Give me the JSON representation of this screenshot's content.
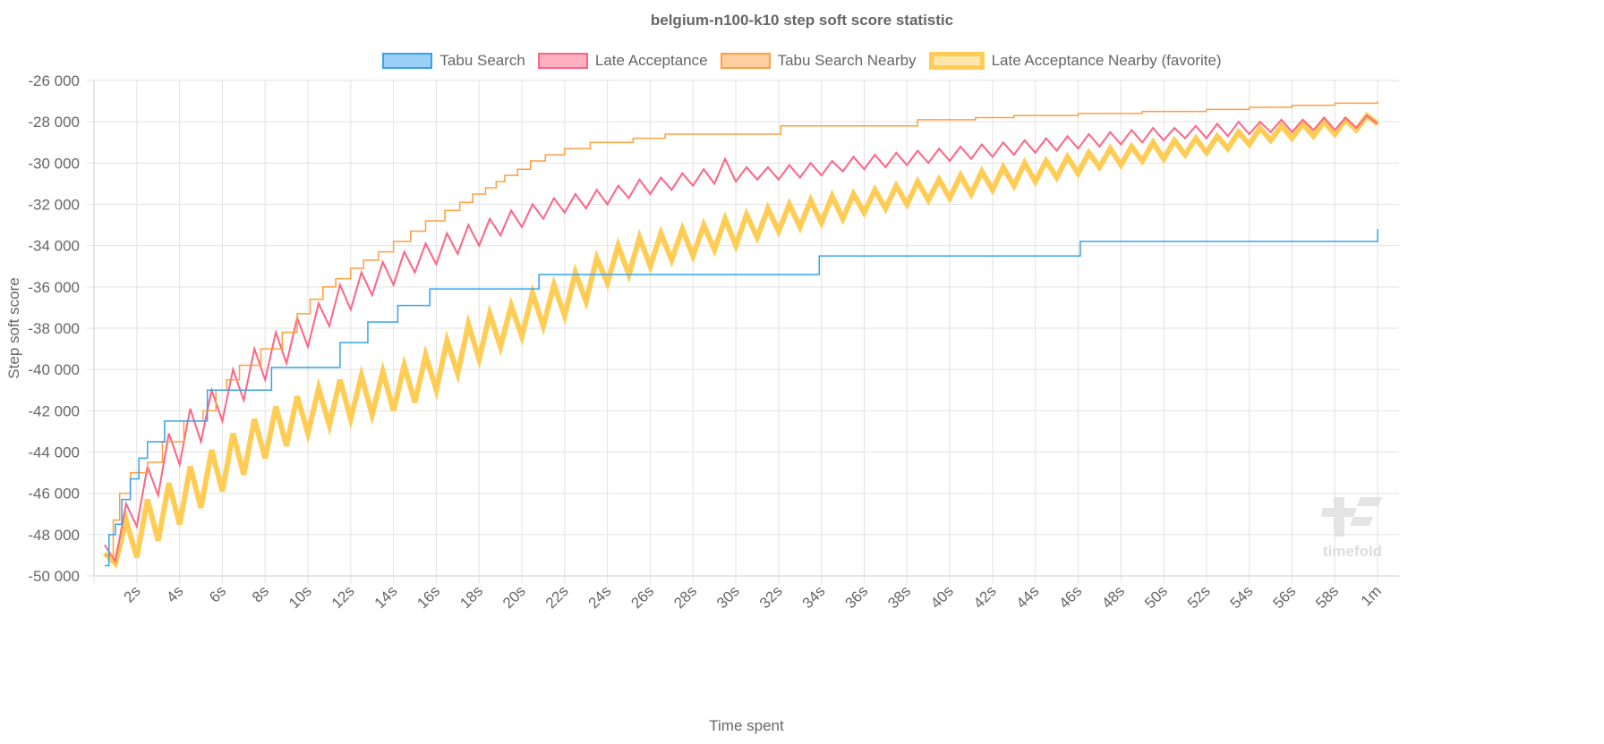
{
  "chart_data": {
    "type": "line",
    "title": "belgium-n100-k10 step soft score statistic",
    "xlabel": "Time spent",
    "ylabel": "Step soft score",
    "xlim": [
      0,
      61
    ],
    "ylim": [
      -50000,
      -26000
    ],
    "grid": true,
    "legend_position": "top",
    "x_ticks": [
      2,
      4,
      6,
      8,
      10,
      12,
      14,
      16,
      18,
      20,
      22,
      24,
      26,
      28,
      30,
      32,
      34,
      36,
      38,
      40,
      42,
      44,
      46,
      48,
      50,
      52,
      54,
      56,
      58,
      60
    ],
    "x_tick_labels": [
      "2s",
      "4s",
      "6s",
      "8s",
      "10s",
      "12s",
      "14s",
      "16s",
      "18s",
      "20s",
      "22s",
      "24s",
      "26s",
      "28s",
      "30s",
      "32s",
      "34s",
      "36s",
      "38s",
      "40s",
      "42s",
      "44s",
      "46s",
      "48s",
      "50s",
      "52s",
      "54s",
      "56s",
      "58s",
      "1m"
    ],
    "y_ticks": [
      -26000,
      -28000,
      -30000,
      -32000,
      -34000,
      -36000,
      -38000,
      -40000,
      -42000,
      -44000,
      -46000,
      -48000,
      -50000
    ],
    "y_tick_labels": [
      "-26 000",
      "-28 000",
      "-30 000",
      "-32 000",
      "-34 000",
      "-36 000",
      "-38 000",
      "-40 000",
      "-42 000",
      "-44 000",
      "-46 000",
      "-48 000",
      "-50 000"
    ],
    "sample_times": [
      0.5,
      1,
      1.5,
      2,
      2.5,
      3,
      3.5,
      4,
      4.5,
      5,
      5.5,
      6,
      6.5,
      7,
      7.5,
      8,
      8.5,
      9,
      9.5,
      10,
      10.5,
      11,
      11.5,
      12,
      12.5,
      13,
      13.5,
      14,
      14.5,
      15,
      15.5,
      16,
      16.5,
      17,
      17.5,
      18,
      18.5,
      19,
      19.5,
      20,
      20.5,
      21,
      21.5,
      22,
      22.5,
      23,
      23.5,
      24,
      24.5,
      25,
      25.5,
      26,
      26.5,
      27,
      27.5,
      28,
      28.5,
      29,
      29.5,
      30,
      30.5,
      31,
      31.5,
      32,
      32.5,
      33,
      33.5,
      34,
      34.5,
      35,
      35.5,
      36,
      36.5,
      37,
      37.5,
      38,
      38.5,
      39,
      39.5,
      40,
      40.5,
      41,
      41.5,
      42,
      42.5,
      43,
      43.5,
      44,
      44.5,
      45,
      45.5,
      46,
      46.5,
      47,
      47.5,
      48,
      48.5,
      49,
      49.5,
      50,
      50.5,
      51,
      51.5,
      52,
      52.5,
      53,
      53.5,
      54,
      54.5,
      55,
      55.5,
      56,
      56.5,
      57,
      57.5,
      58,
      58.5,
      59,
      59.5,
      60
    ],
    "series": [
      {
        "name": "Tabu Search",
        "color": "#36a2eb",
        "fill": "#9ad0f5",
        "step": true,
        "points": [
          [
            0.5,
            -49500
          ],
          [
            0.7,
            -48000
          ],
          [
            1.0,
            -47500
          ],
          [
            1.3,
            -46300
          ],
          [
            1.7,
            -45300
          ],
          [
            2.1,
            -44300
          ],
          [
            2.5,
            -43500
          ],
          [
            3.3,
            -42500
          ],
          [
            5.3,
            -41000
          ],
          [
            8.3,
            -39900
          ],
          [
            11.5,
            -38700
          ],
          [
            12.8,
            -37700
          ],
          [
            14.2,
            -36900
          ],
          [
            15.7,
            -36100
          ],
          [
            20.8,
            -35400
          ],
          [
            33.9,
            -34500
          ],
          [
            46.1,
            -33800
          ],
          [
            60,
            -33800
          ],
          [
            60,
            -33200
          ]
        ]
      },
      {
        "name": "Late Acceptance",
        "color": "#ff6384",
        "fill": "#ffb1c1",
        "values": [
          -48500,
          -49300,
          -46500,
          -47600,
          -44700,
          -46100,
          -43100,
          -44600,
          -41900,
          -43500,
          -41000,
          -42500,
          -40000,
          -41500,
          -39000,
          -40500,
          -38200,
          -39700,
          -37500,
          -38900,
          -36800,
          -37900,
          -35900,
          -37100,
          -35300,
          -36400,
          -34800,
          -35900,
          -34300,
          -35300,
          -33900,
          -34900,
          -33400,
          -34400,
          -33000,
          -34000,
          -32700,
          -33500,
          -32300,
          -33100,
          -32000,
          -32700,
          -31700,
          -32400,
          -31500,
          -32200,
          -31300,
          -32000,
          -31100,
          -31700,
          -30800,
          -31500,
          -30700,
          -31300,
          -30500,
          -31100,
          -30300,
          -31000,
          -29800,
          -30900,
          -30200,
          -30800,
          -30200,
          -30800,
          -30100,
          -30700,
          -30000,
          -30600,
          -29900,
          -30400,
          -29700,
          -30300,
          -29600,
          -30200,
          -29500,
          -30100,
          -29400,
          -30000,
          -29300,
          -29900,
          -29200,
          -29800,
          -29100,
          -29700,
          -29000,
          -29600,
          -28900,
          -29500,
          -28800,
          -29400,
          -28700,
          -29300,
          -28600,
          -29200,
          -28500,
          -29100,
          -28400,
          -29000,
          -28300,
          -28900,
          -28300,
          -28800,
          -28200,
          -28800,
          -28100,
          -28700,
          -28000,
          -28600,
          -28000,
          -28500,
          -27900,
          -28500,
          -27900,
          -28400,
          -27800,
          -28400,
          -27800,
          -28300,
          -27700,
          -28100
        ]
      },
      {
        "name": "Tabu Search Nearby",
        "color": "#ff9f40",
        "fill": "#ffcf9f",
        "step": true,
        "points": [
          [
            0.5,
            -49000
          ],
          [
            0.9,
            -47300
          ],
          [
            1.2,
            -46000
          ],
          [
            1.7,
            -45000
          ],
          [
            2.5,
            -44500
          ],
          [
            3.2,
            -43500
          ],
          [
            4.2,
            -42500
          ],
          [
            5.1,
            -42000
          ],
          [
            5.7,
            -41000
          ],
          [
            6.2,
            -40500
          ],
          [
            6.8,
            -39800
          ],
          [
            7.8,
            -39000
          ],
          [
            8.8,
            -38200
          ],
          [
            9.5,
            -37300
          ],
          [
            10.1,
            -36600
          ],
          [
            10.7,
            -36000
          ],
          [
            11.3,
            -35600
          ],
          [
            12,
            -35100
          ],
          [
            12.6,
            -34700
          ],
          [
            13.3,
            -34300
          ],
          [
            14,
            -33800
          ],
          [
            14.8,
            -33300
          ],
          [
            15.5,
            -32800
          ],
          [
            16.4,
            -32300
          ],
          [
            17.1,
            -31900
          ],
          [
            17.7,
            -31500
          ],
          [
            18.3,
            -31200
          ],
          [
            18.8,
            -30900
          ],
          [
            19.2,
            -30600
          ],
          [
            19.8,
            -30300
          ],
          [
            20.4,
            -29900
          ],
          [
            21.1,
            -29600
          ],
          [
            22,
            -29300
          ],
          [
            23.2,
            -29000
          ],
          [
            25.2,
            -28800
          ],
          [
            26.7,
            -28600
          ],
          [
            32.1,
            -28200
          ],
          [
            38.5,
            -27900
          ],
          [
            41.2,
            -27800
          ],
          [
            43,
            -27700
          ],
          [
            46,
            -27600
          ],
          [
            49,
            -27500
          ],
          [
            52,
            -27400
          ],
          [
            54,
            -27300
          ],
          [
            56,
            -27200
          ],
          [
            58,
            -27100
          ],
          [
            60,
            -27000
          ]
        ]
      },
      {
        "name": "Late Acceptance Nearby (favorite)",
        "color": "#ffcd56",
        "fill": "#ffe6aa",
        "favorite": true,
        "values": [
          -48900,
          -49400,
          -47300,
          -49100,
          -46300,
          -48300,
          -45500,
          -47500,
          -44700,
          -46700,
          -43900,
          -45900,
          -43100,
          -45100,
          -42400,
          -44300,
          -41800,
          -43700,
          -41300,
          -43100,
          -40900,
          -42700,
          -40500,
          -42400,
          -40300,
          -42200,
          -40100,
          -42000,
          -39800,
          -41600,
          -39300,
          -41000,
          -38600,
          -40200,
          -37800,
          -39500,
          -37300,
          -38900,
          -36900,
          -38400,
          -36300,
          -37900,
          -35900,
          -37400,
          -35300,
          -36700,
          -34600,
          -35800,
          -34000,
          -35400,
          -33600,
          -35000,
          -33400,
          -34700,
          -33200,
          -34500,
          -33000,
          -34200,
          -32700,
          -34000,
          -32500,
          -33600,
          -32200,
          -33300,
          -32000,
          -33100,
          -31800,
          -32900,
          -31600,
          -32700,
          -31500,
          -32400,
          -31300,
          -32200,
          -31100,
          -32000,
          -30900,
          -31800,
          -30800,
          -31700,
          -30600,
          -31500,
          -30400,
          -31300,
          -30200,
          -31100,
          -30000,
          -30900,
          -29900,
          -30700,
          -29700,
          -30500,
          -29500,
          -30200,
          -29300,
          -30100,
          -29200,
          -29900,
          -29000,
          -29800,
          -28900,
          -29600,
          -28800,
          -29500,
          -28700,
          -29300,
          -28500,
          -29100,
          -28300,
          -28900,
          -28200,
          -28800,
          -28100,
          -28700,
          -28000,
          -28600,
          -27900,
          -28400,
          -27700,
          -28100
        ]
      }
    ]
  },
  "watermark": "timefold"
}
